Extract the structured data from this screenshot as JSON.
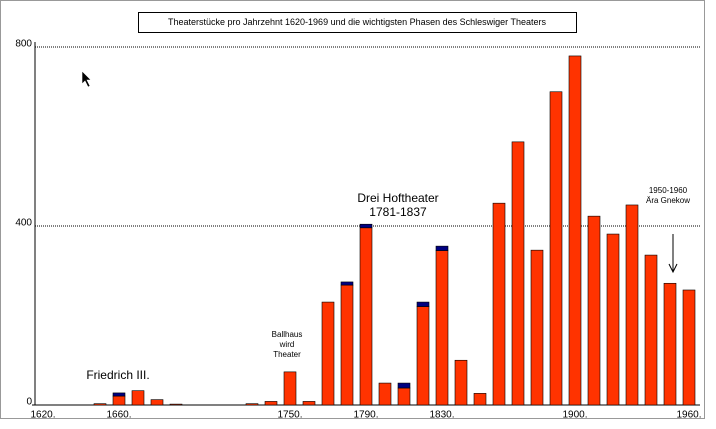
{
  "chart_data": {
    "type": "stacked_bar",
    "title": "Theaterstücke pro Jahrzehnt 1620-1969 und die wichtigsten Phasen des Schleswiger Theaters",
    "categories": [
      "1620.",
      null,
      null,
      null,
      "1660.",
      null,
      null,
      null,
      null,
      null,
      null,
      null,
      null,
      "1750.",
      null,
      null,
      null,
      "1790.",
      null,
      null,
      null,
      "1830.",
      null,
      null,
      null,
      null,
      null,
      null,
      "1900.",
      null,
      null,
      null,
      null,
      null,
      "1960."
    ],
    "series": [
      {
        "color": "#ff3300",
        "values": [
          0,
          0,
          0,
          3,
          20,
          32,
          12,
          2,
          0,
          0,
          0,
          3,
          8,
          74,
          8,
          230,
          268,
          396,
          49,
          38,
          220,
          345,
          100,
          26,
          451,
          588,
          346,
          700,
          780,
          422,
          382,
          447,
          335,
          272,
          257
        ]
      },
      {
        "color": "#000080",
        "values": [
          0,
          0,
          0,
          0,
          7,
          0,
          0,
          0,
          0,
          0,
          0,
          0,
          0,
          0,
          0,
          0,
          7,
          8,
          0,
          11,
          10,
          10,
          0,
          0,
          0,
          0,
          0,
          0,
          0,
          0,
          0,
          0,
          0,
          0,
          0
        ]
      }
    ],
    "ylim": [
      0,
      800
    ],
    "yticks": [
      0,
      400,
      800
    ],
    "grid": true,
    "annotations": [
      {
        "lines": [
          "Friedrich III."
        ],
        "category": 4
      },
      {
        "lines": [
          "Ballhaus",
          "wird",
          "Theater"
        ],
        "category": 13
      },
      {
        "lines": [
          "Drei Hoftheater",
          "1781-1837"
        ],
        "category": 18
      },
      {
        "lines": [
          "1950-1960",
          "Ära Gnekow"
        ],
        "category": 33
      }
    ]
  }
}
